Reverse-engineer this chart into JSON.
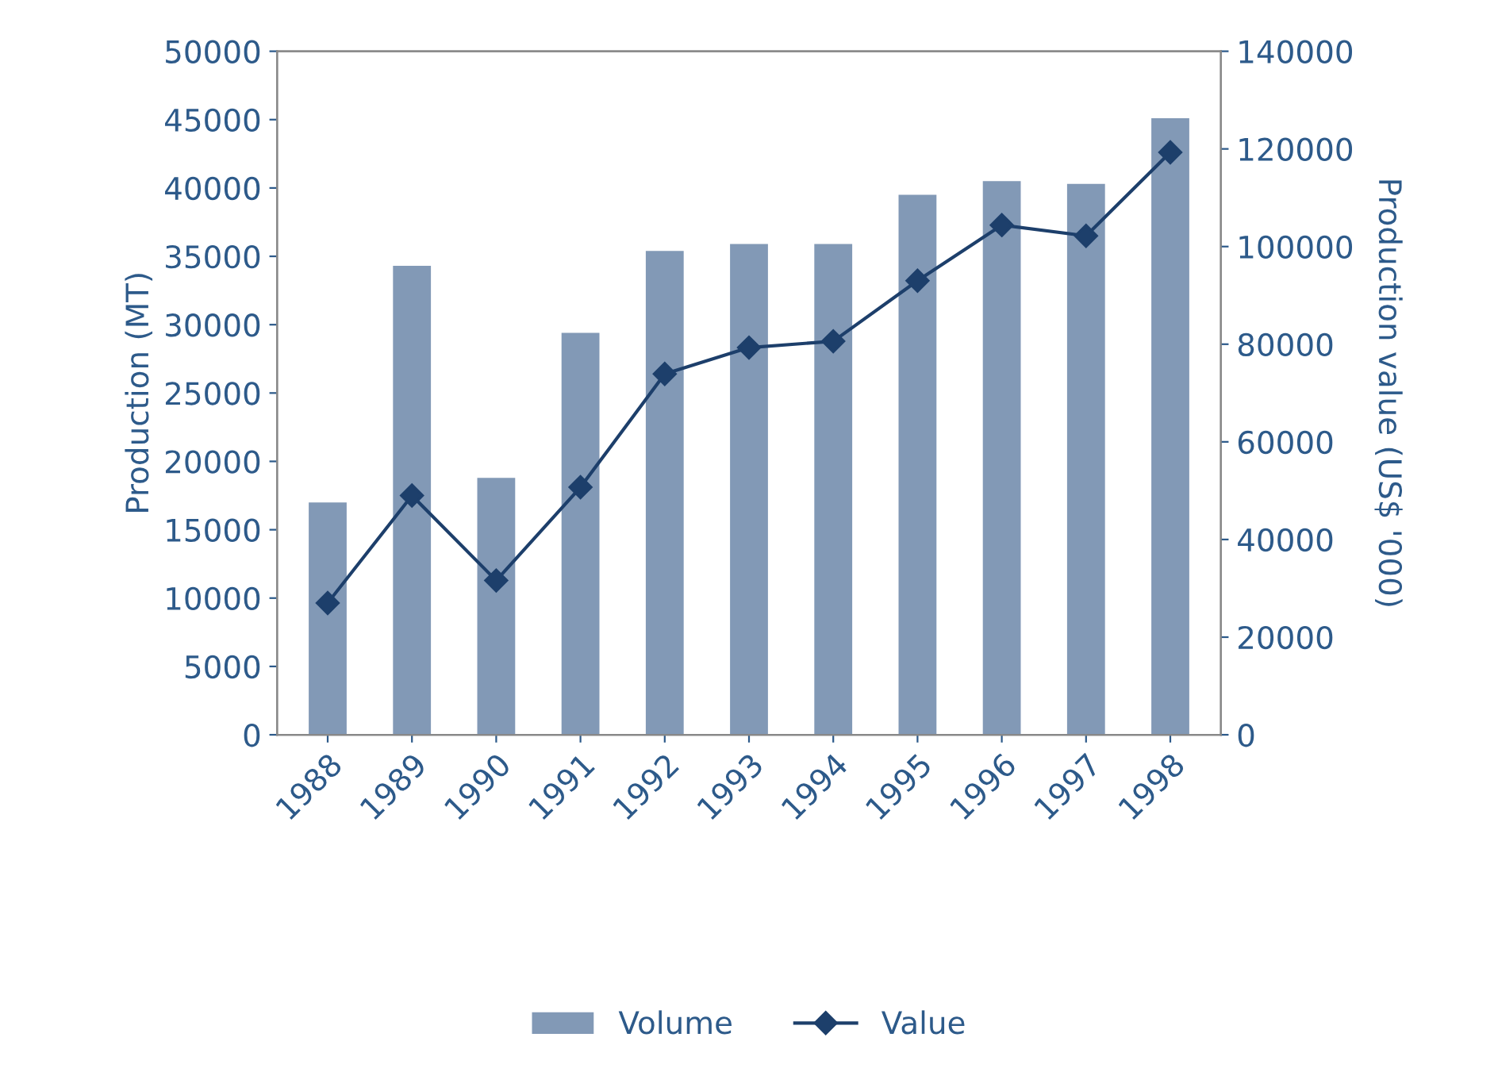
{
  "chart_data": {
    "type": "bar",
    "categories": [
      "1988",
      "1989",
      "1990",
      "1991",
      "1992",
      "1993",
      "1994",
      "1995",
      "1996",
      "1997",
      "1998"
    ],
    "ylabel": "Production (MT)",
    "y2label": "Production value (US$ '000)",
    "series": [
      {
        "name": "Volume",
        "color": "#8299b6",
        "values": [
          17000,
          34300,
          18800,
          29400,
          35400,
          35900,
          35900,
          39500,
          40500,
          40300,
          45100
        ]
      },
      {
        "name": "Value",
        "type": "line",
        "axis": "y2",
        "color": "#1d3f6b",
        "marker": "diamond",
        "values": [
          27000,
          49000,
          31600,
          50700,
          73900,
          79300,
          80600,
          93000,
          104400,
          102200,
          119300
        ]
      }
    ],
    "ylim": [
      0,
      50000
    ],
    "yticks": [
      0,
      5000,
      10000,
      15000,
      20000,
      25000,
      30000,
      35000,
      40000,
      45000,
      50000
    ],
    "y2lim": [
      0,
      140000
    ],
    "y2ticks": [
      0,
      20000,
      40000,
      60000,
      80000,
      100000,
      120000,
      140000
    ],
    "grid": false,
    "legend": "bottom"
  }
}
